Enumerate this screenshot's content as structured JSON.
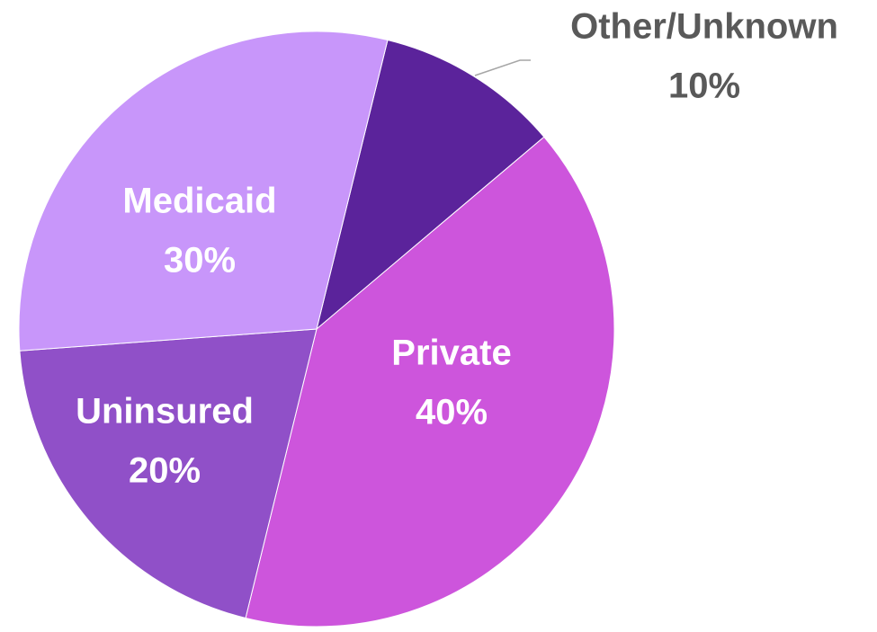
{
  "chart_data": {
    "type": "pie",
    "categories": [
      "Other/Unknown",
      "Private",
      "Uninsured",
      "Medicaid"
    ],
    "values": [
      10,
      40,
      20,
      30
    ],
    "value_labels": [
      "10%",
      "40%",
      "20%",
      "30%"
    ],
    "colors": [
      "#5b239b",
      "#cd55dc",
      "#9050c8",
      "#c896fa"
    ]
  }
}
